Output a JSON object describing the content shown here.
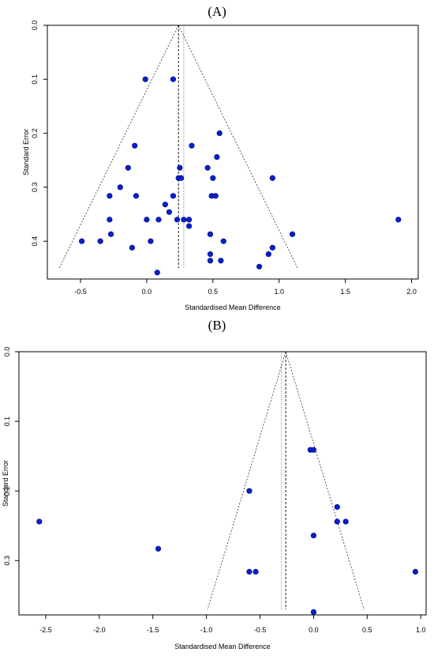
{
  "panels": [
    {
      "label": "(A)"
    },
    {
      "label": "(B)"
    }
  ],
  "chart_data": [
    {
      "type": "scatter",
      "title": "",
      "xlabel": "Standardised Mean Difference",
      "ylabel": "Standard Error",
      "xlim": [
        -0.75,
        2.05
      ],
      "ylim": [
        0.47,
        0.0
      ],
      "y_reversed": true,
      "xticks": [
        -0.5,
        0.0,
        0.5,
        1.0,
        1.5,
        2.0
      ],
      "xtick_labels": [
        "-0.5",
        "0.0",
        "0.5",
        "1.0",
        "1.5",
        "2.0"
      ],
      "yticks": [
        0.0,
        0.1,
        0.2,
        0.3,
        0.4
      ],
      "ytick_labels": [
        "0.0",
        "0.1",
        "0.2",
        "0.3",
        "0.4"
      ],
      "point_color": "#0a1ecc",
      "funnel_apex": [
        0.24,
        0.0
      ],
      "funnel_base_se": 0.45,
      "funnel_base_x": [
        -0.66,
        1.14
      ],
      "dashed_line_x": 0.24,
      "dotted_line_x": 0.28,
      "points": [
        [
          -0.01,
          0.1
        ],
        [
          0.2,
          0.1
        ],
        [
          0.55,
          0.2
        ],
        [
          -0.09,
          0.223
        ],
        [
          0.34,
          0.223
        ],
        [
          0.53,
          0.244
        ],
        [
          -0.14,
          0.264
        ],
        [
          0.25,
          0.264
        ],
        [
          0.46,
          0.264
        ],
        [
          0.95,
          0.283
        ],
        [
          0.24,
          0.283
        ],
        [
          0.26,
          0.283
        ],
        [
          0.5,
          0.283
        ],
        [
          -0.2,
          0.3
        ],
        [
          -0.28,
          0.316
        ],
        [
          -0.08,
          0.316
        ],
        [
          0.2,
          0.316
        ],
        [
          0.49,
          0.316
        ],
        [
          0.52,
          0.316
        ],
        [
          0.14,
          0.332
        ],
        [
          0.17,
          0.346
        ],
        [
          -0.28,
          0.36
        ],
        [
          0.0,
          0.36
        ],
        [
          0.09,
          0.36
        ],
        [
          0.23,
          0.36
        ],
        [
          0.28,
          0.36
        ],
        [
          0.32,
          0.36
        ],
        [
          1.9,
          0.36
        ],
        [
          0.32,
          0.372
        ],
        [
          -0.27,
          0.387
        ],
        [
          0.48,
          0.387
        ],
        [
          1.1,
          0.387
        ],
        [
          -0.49,
          0.4
        ],
        [
          -0.35,
          0.4
        ],
        [
          0.03,
          0.4
        ],
        [
          0.58,
          0.4
        ],
        [
          -0.11,
          0.412
        ],
        [
          0.95,
          0.412
        ],
        [
          0.48,
          0.424
        ],
        [
          0.92,
          0.424
        ],
        [
          0.48,
          0.436
        ],
        [
          0.56,
          0.436
        ],
        [
          0.85,
          0.447
        ],
        [
          0.08,
          0.458
        ]
      ]
    },
    {
      "type": "scatter",
      "title": "",
      "xlabel": "Standardised Mean Difference",
      "ylabel": "Standard Error",
      "xlim": [
        -2.75,
        1.05
      ],
      "ylim": [
        0.378,
        0.0
      ],
      "y_reversed": true,
      "xticks": [
        -2.5,
        -2.0,
        -1.5,
        -1.0,
        -0.5,
        0.0,
        0.5,
        1.0
      ],
      "xtick_labels": [
        "-2.5",
        "-2.0",
        "-1.5",
        "-1.0",
        "-0.5",
        "0.0",
        "0.5",
        "1.0"
      ],
      "yticks": [
        0.0,
        0.1,
        0.2,
        0.3
      ],
      "ytick_labels": [
        "0.0",
        "0.1",
        "0.2",
        "0.3"
      ],
      "point_color": "#0a1ecc",
      "funnel_apex": [
        -0.26,
        0.0
      ],
      "funnel_base_se": 0.37,
      "funnel_base_x": [
        -0.99,
        0.47
      ],
      "dashed_line_x": -0.26,
      "dotted_line_x": -0.3,
      "points": [
        [
          -0.03,
          0.141
        ],
        [
          0.0,
          0.141
        ],
        [
          -0.6,
          0.2
        ],
        [
          0.22,
          0.223
        ],
        [
          0.22,
          0.244
        ],
        [
          0.3,
          0.244
        ],
        [
          -2.56,
          0.244
        ],
        [
          0.0,
          0.264
        ],
        [
          -1.45,
          0.283
        ],
        [
          -0.6,
          0.316
        ],
        [
          -0.54,
          0.316
        ],
        [
          0.95,
          0.316
        ],
        [
          0.0,
          0.374
        ]
      ]
    }
  ]
}
